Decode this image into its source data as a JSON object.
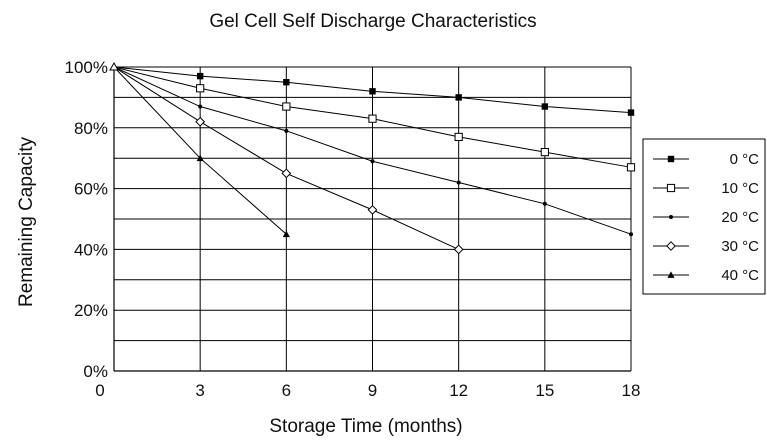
{
  "chart_data": {
    "type": "line",
    "title": "Gel Cell Self Discharge Characteristics",
    "xlabel": "Storage Time (months)",
    "ylabel": "Remaining Capacity",
    "xlim": [
      0,
      18
    ],
    "ylim": [
      0,
      100
    ],
    "x_ticks": [
      0,
      3,
      6,
      9,
      12,
      15,
      18
    ],
    "y_ticks": [
      0,
      20,
      40,
      60,
      80,
      100
    ],
    "y_tick_labels": [
      "0%",
      "20%",
      "40%",
      "60%",
      "80%",
      "100%"
    ],
    "grid": true,
    "legend_position": "right",
    "series": [
      {
        "name": "0 °C",
        "marker": "square-filled",
        "x": [
          0,
          3,
          6,
          9,
          12,
          15,
          18
        ],
        "y": [
          100,
          97,
          95,
          92,
          90,
          87,
          85
        ]
      },
      {
        "name": "10 °C",
        "marker": "square-open",
        "x": [
          0,
          3,
          6,
          9,
          12,
          15,
          18
        ],
        "y": [
          100,
          93,
          87,
          83,
          77,
          72,
          67
        ]
      },
      {
        "name": "20 °C",
        "marker": "dot",
        "x": [
          0,
          3,
          6,
          9,
          12,
          15,
          18
        ],
        "y": [
          100,
          87,
          79,
          69,
          62,
          55,
          45
        ]
      },
      {
        "name": "30 °C",
        "marker": "diamond-open",
        "x": [
          0,
          3,
          6,
          9,
          12
        ],
        "y": [
          100,
          82,
          65,
          53,
          40
        ]
      },
      {
        "name": "40 °C",
        "marker": "triangle-filled",
        "x": [
          0,
          3,
          6
        ],
        "y": [
          100,
          70,
          45
        ]
      }
    ]
  }
}
